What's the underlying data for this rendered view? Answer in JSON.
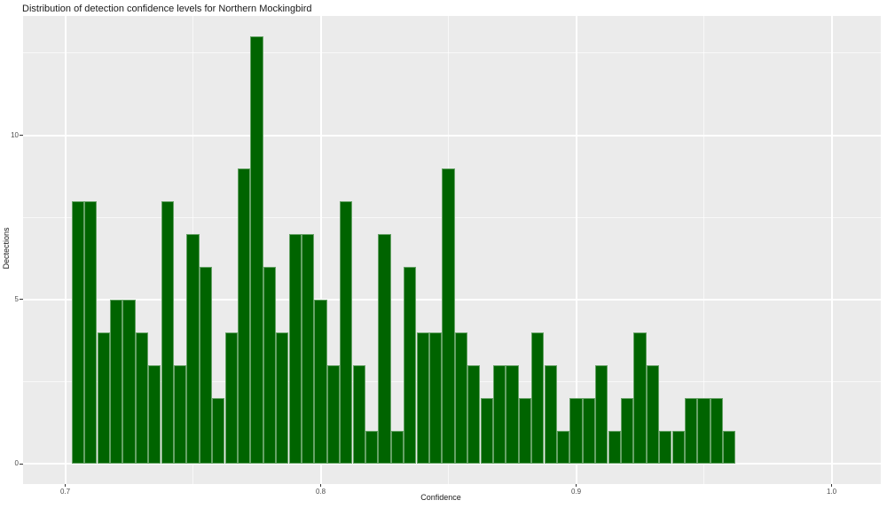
{
  "chart_data": {
    "type": "bar",
    "variant": "histogram",
    "title": "Distribution of detection confidence levels for Northern Mockingbird",
    "xlabel": "Confidence",
    "ylabel": "Dectections",
    "legend": false,
    "grid": true,
    "bin_width": 0.005,
    "bin_centers": [
      0.705,
      0.71,
      0.715,
      0.72,
      0.725,
      0.73,
      0.735,
      0.74,
      0.745,
      0.75,
      0.755,
      0.76,
      0.765,
      0.77,
      0.775,
      0.78,
      0.785,
      0.79,
      0.795,
      0.8,
      0.805,
      0.81,
      0.815,
      0.82,
      0.825,
      0.83,
      0.835,
      0.84,
      0.845,
      0.85,
      0.855,
      0.86,
      0.865,
      0.87,
      0.875,
      0.88,
      0.885,
      0.89,
      0.895,
      0.9,
      0.905,
      0.91,
      0.915,
      0.92,
      0.925,
      0.93,
      0.935,
      0.94,
      0.945,
      0.95,
      0.955,
      0.96
    ],
    "counts": [
      8,
      8,
      4,
      5,
      5,
      4,
      3,
      8,
      3,
      7,
      6,
      2,
      4,
      9,
      13,
      6,
      4,
      7,
      7,
      5,
      3,
      8,
      3,
      1,
      7,
      1,
      6,
      4,
      4,
      9,
      4,
      3,
      2,
      3,
      3,
      2,
      4,
      3,
      1,
      2,
      2,
      3,
      1,
      2,
      4,
      3,
      1,
      1,
      2,
      2,
      2,
      1
    ],
    "x_ticks": [
      {
        "value": 0.7,
        "label": "0.7"
      },
      {
        "value": 0.8,
        "label": "0.8"
      },
      {
        "value": 0.9,
        "label": "0.9"
      },
      {
        "value": 1.0,
        "label": "1.0"
      }
    ],
    "y_ticks": [
      {
        "value": 0,
        "label": "0"
      },
      {
        "value": 5,
        "label": "5"
      },
      {
        "value": 10,
        "label": "10"
      }
    ],
    "x_minor_ticks": [
      0.75,
      0.85,
      0.95
    ],
    "y_minor_ticks": [
      2.5,
      7.5,
      12.5
    ],
    "xlim": [
      0.6835,
      1.0193
    ],
    "ylim": [
      -0.62,
      13.63
    ],
    "colors": {
      "bar_fill": "#006400",
      "bar_edge": "rgba(255,255,255,0.40)",
      "panel_bg": "#EBEBEB",
      "grid_major": "#FFFFFF",
      "grid_minor": "rgba(255,255,255,0.65)",
      "tick_label": "#4D4D4D",
      "text": "#1A1A1A",
      "page_bg": "#FFFFFF"
    }
  }
}
